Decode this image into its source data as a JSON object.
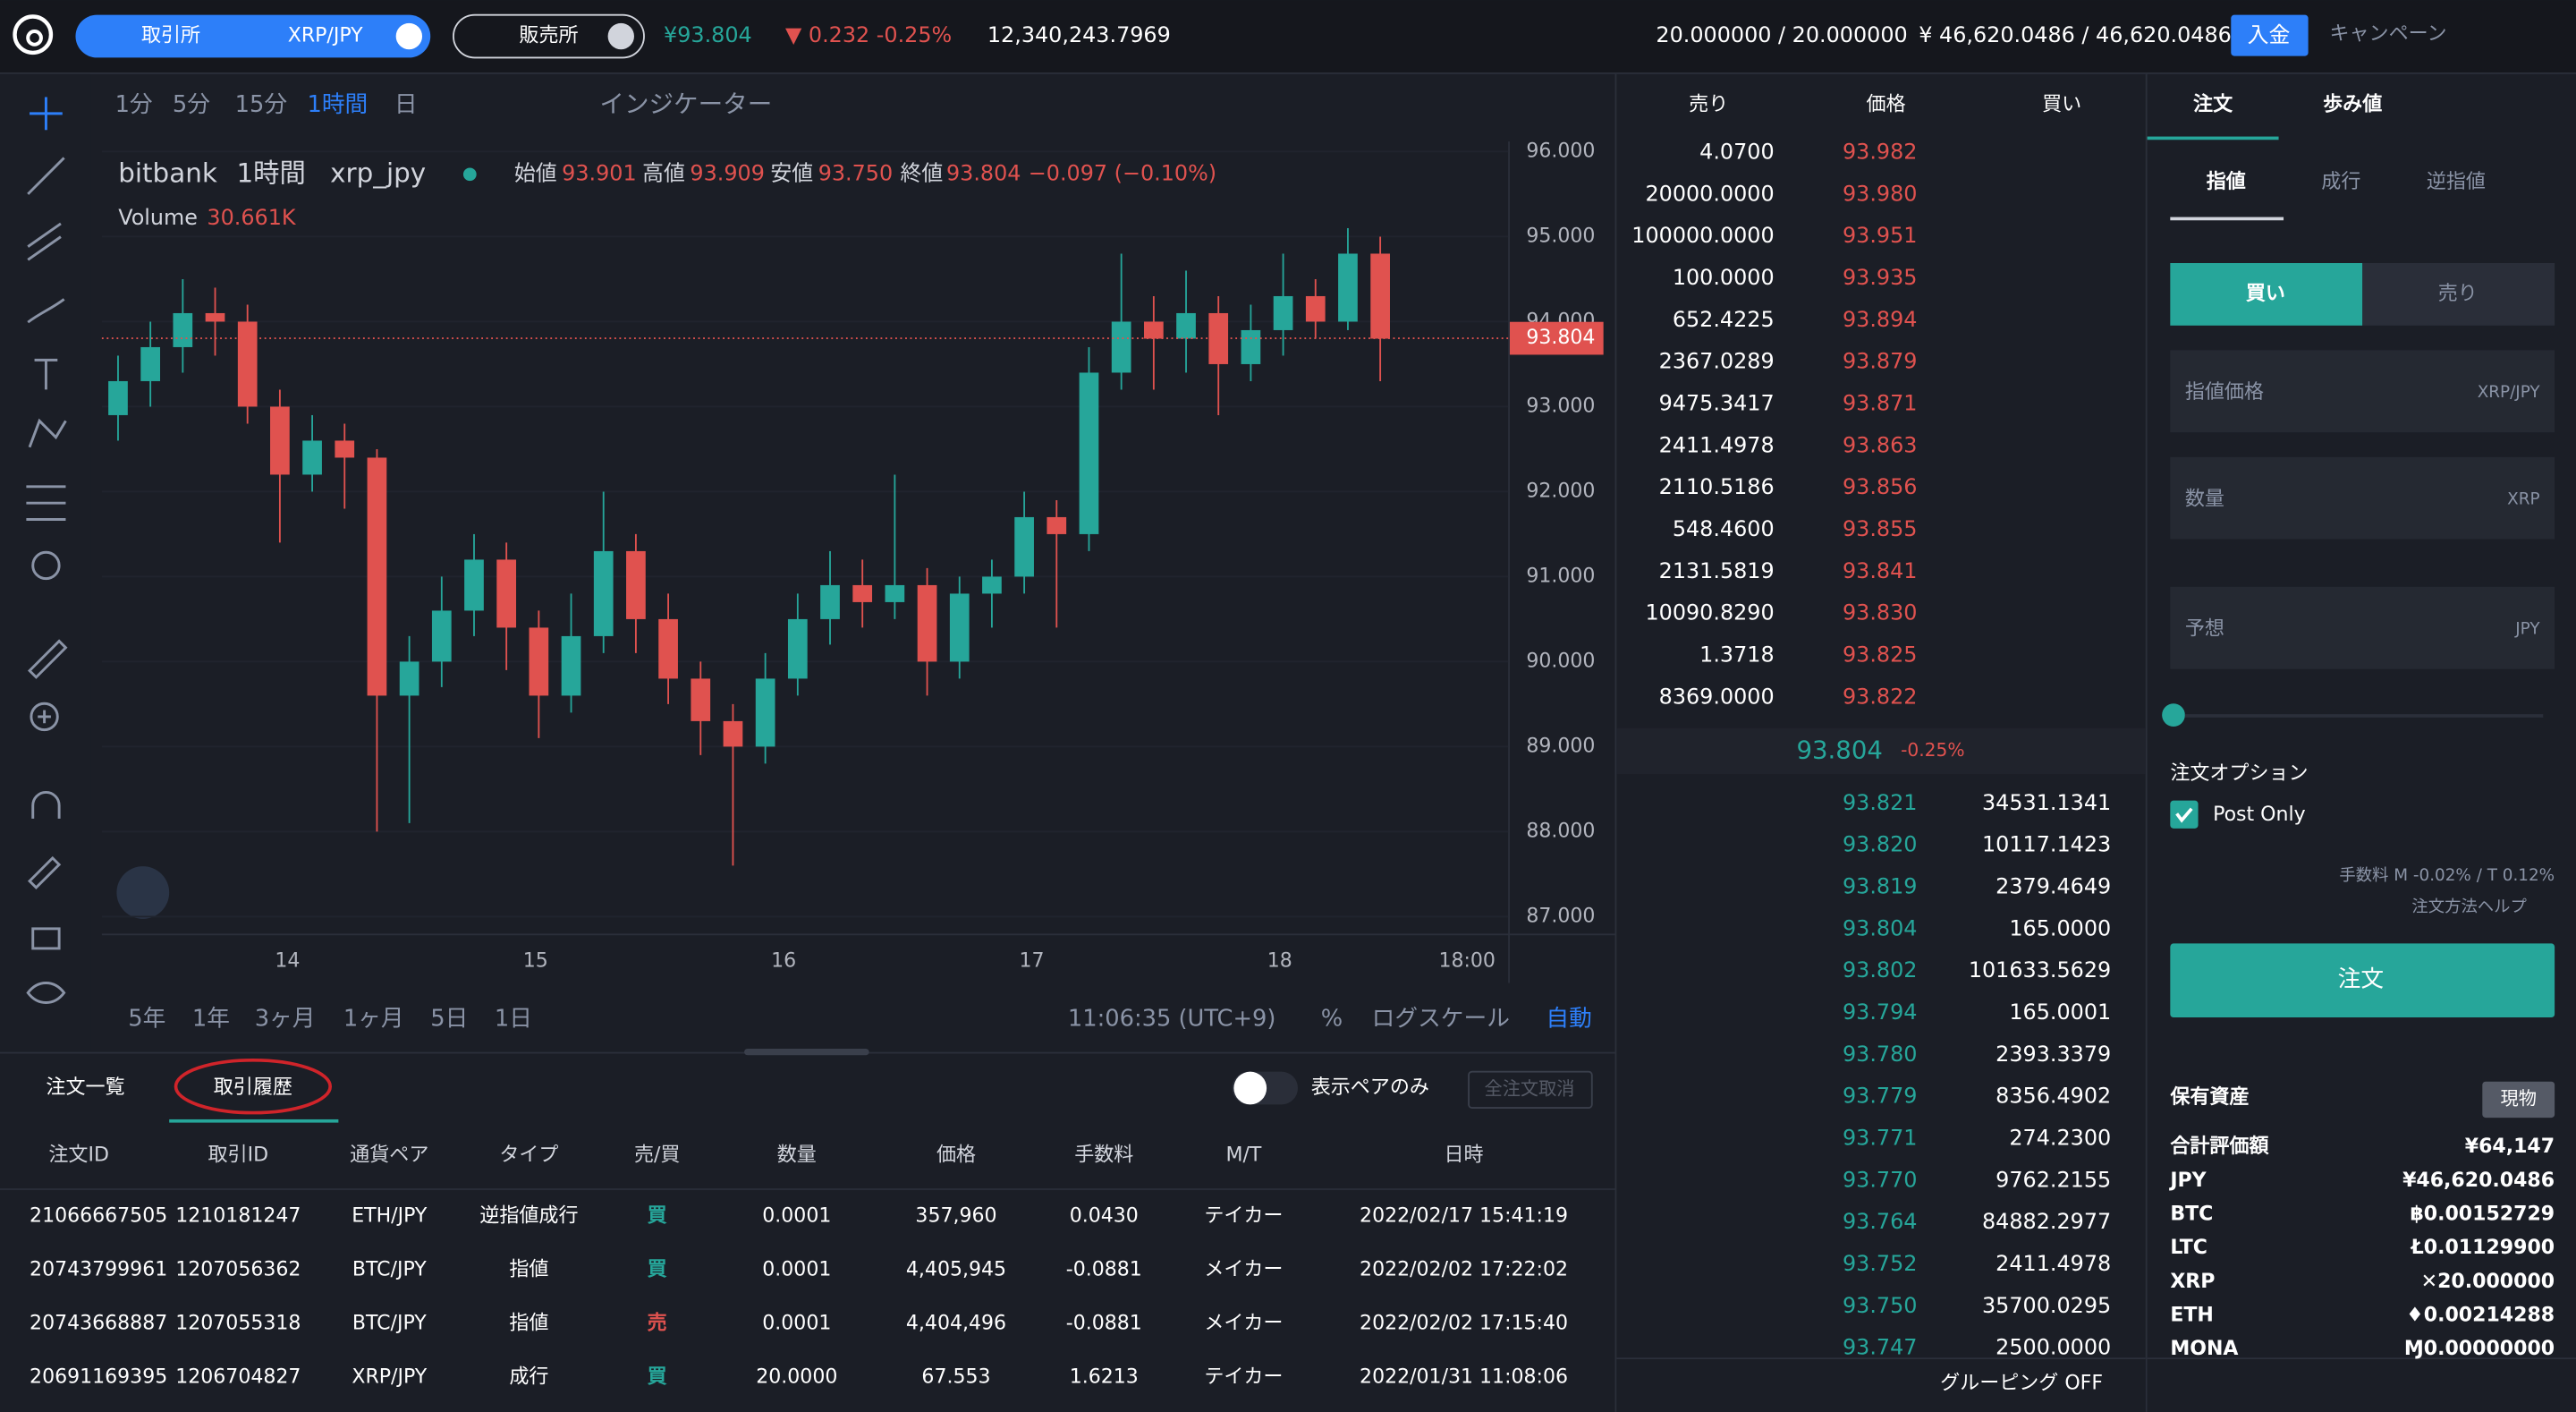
{
  "header": {
    "exchange_tab": "取引所",
    "pair": "XRP/JPY",
    "store_tab": "販売所",
    "price": "¥93.804",
    "change": "▼ 0.232 -0.25%",
    "volume": "12,340,243.7969",
    "xrp_balance": "20.000000 / 20.000000",
    "jpy_balance": "¥ 46,620.0486 / 46,620.0486",
    "deposit": "入金",
    "campaign": "キャンペーン"
  },
  "toolbar": {
    "intervals": [
      "1分",
      "5分",
      "15分",
      "1時間",
      "日"
    ],
    "indicator": "インジケーター"
  },
  "chart": {
    "type": "candlestick",
    "legend": {
      "exchange": "bitbank",
      "interval": "1時間",
      "symbol": "xrp_jpy",
      "open_label": "始値",
      "open": "93.901",
      "high_label": "高値",
      "high": "93.909",
      "low_label": "安値",
      "low": "93.750",
      "close_label": "終値",
      "close": "93.804",
      "change": "−0.097 (−0.10%)"
    },
    "volume_label": "Volume",
    "volume": "30.661K",
    "last_price": {
      "value": 93.804,
      "label": "93.804"
    },
    "ylim": [
      86.8,
      96.12
    ],
    "yticks": [
      {
        "value": 96,
        "label": "96.000"
      },
      {
        "value": 95,
        "label": "95.000"
      },
      {
        "value": 94,
        "label": "94.000"
      },
      {
        "value": 93,
        "label": "93.000"
      },
      {
        "value": 92,
        "label": "92.000"
      },
      {
        "value": 91,
        "label": "91.000"
      },
      {
        "value": 90,
        "label": "90.000"
      },
      {
        "value": 89,
        "label": "89.000"
      },
      {
        "value": 88,
        "label": "88.000"
      },
      {
        "value": 87,
        "label": "87.000"
      }
    ],
    "grid": true,
    "xlabels": [
      "14",
      "15",
      "16",
      "17",
      "18",
      "18:00"
    ],
    "up_color": "#26a69a",
    "down_color": "#e0524f",
    "candles": [
      [
        92.9,
        93.6,
        92.6,
        93.3
      ],
      [
        93.3,
        94.0,
        93.0,
        93.7
      ],
      [
        93.7,
        94.5,
        93.4,
        94.1
      ],
      [
        94.1,
        94.4,
        93.6,
        94.0
      ],
      [
        94.0,
        94.2,
        92.8,
        93.0
      ],
      [
        93.0,
        93.2,
        91.4,
        92.2
      ],
      [
        92.2,
        92.9,
        92.0,
        92.6
      ],
      [
        92.6,
        92.8,
        91.8,
        92.4
      ],
      [
        92.4,
        92.5,
        88.0,
        89.6
      ],
      [
        89.6,
        90.3,
        88.1,
        90.0
      ],
      [
        90.0,
        91.0,
        89.7,
        90.6
      ],
      [
        90.6,
        91.5,
        90.3,
        91.2
      ],
      [
        91.2,
        91.4,
        89.9,
        90.4
      ],
      [
        90.4,
        90.6,
        89.1,
        89.6
      ],
      [
        89.6,
        90.8,
        89.4,
        90.3
      ],
      [
        90.3,
        92.0,
        90.1,
        91.3
      ],
      [
        91.3,
        91.5,
        90.1,
        90.5
      ],
      [
        90.5,
        90.8,
        89.5,
        89.8
      ],
      [
        89.8,
        90.0,
        88.9,
        89.3
      ],
      [
        89.3,
        89.5,
        87.6,
        89.0
      ],
      [
        89.0,
        90.1,
        88.8,
        89.8
      ],
      [
        89.8,
        90.8,
        89.6,
        90.5
      ],
      [
        90.5,
        91.3,
        90.2,
        90.9
      ],
      [
        90.9,
        91.2,
        90.4,
        90.7
      ],
      [
        90.7,
        92.2,
        90.5,
        90.9
      ],
      [
        90.9,
        91.1,
        89.6,
        90.0
      ],
      [
        90.0,
        91.0,
        89.8,
        90.8
      ],
      [
        90.8,
        91.2,
        90.4,
        91.0
      ],
      [
        91.0,
        92.0,
        90.8,
        91.7
      ],
      [
        91.7,
        91.9,
        90.4,
        91.5
      ],
      [
        91.5,
        93.7,
        91.3,
        93.4
      ],
      [
        93.4,
        94.8,
        93.2,
        94.0
      ],
      [
        94.0,
        94.3,
        93.2,
        93.8
      ],
      [
        93.8,
        94.6,
        93.4,
        94.1
      ],
      [
        94.1,
        94.3,
        92.9,
        93.5
      ],
      [
        93.5,
        94.2,
        93.3,
        93.9
      ],
      [
        93.9,
        94.8,
        93.6,
        94.3
      ],
      [
        94.3,
        94.5,
        93.8,
        94.0
      ],
      [
        94.0,
        95.1,
        93.9,
        94.8
      ],
      [
        94.8,
        95.0,
        93.3,
        93.8
      ]
    ]
  },
  "range_bar": {
    "ranges": [
      "5年",
      "1年",
      "3ヶ月",
      "1ヶ月",
      "5日",
      "1日"
    ],
    "time": "11:06:35 (UTC+9)",
    "percent": "%",
    "log": "ログスケール",
    "auto": "自動"
  },
  "orders": {
    "tabs": [
      "注文一覧",
      "取引履歴"
    ],
    "pair_only": "表示ペアのみ",
    "cancel_all": "全注文取消",
    "columns": [
      "注文ID",
      "取引ID",
      "通貨ペア",
      "タイプ",
      "売/買",
      "数量",
      "価格",
      "手数料",
      "M/T",
      "日時"
    ],
    "rows": [
      [
        "21066667505",
        "1210181247",
        "ETH/JPY",
        "逆指値成行",
        "買",
        "0.0001",
        "357,960",
        "0.0430",
        "テイカー",
        "2022/02/17 15:41:19"
      ],
      [
        "20743799961",
        "1207056362",
        "BTC/JPY",
        "指値",
        "買",
        "0.0001",
        "4,405,945",
        "-0.0881",
        "メイカー",
        "2022/02/02 17:22:02"
      ],
      [
        "20743668887",
        "1207055318",
        "BTC/JPY",
        "指値",
        "売",
        "0.0001",
        "4,404,496",
        "-0.0881",
        "メイカー",
        "2022/02/02 17:15:40"
      ],
      [
        "20691169395",
        "1206704827",
        "XRP/JPY",
        "成行",
        "買",
        "20.0000",
        "67.553",
        "1.6213",
        "テイカー",
        "2022/01/31 11:08:06"
      ]
    ],
    "side_colors": [
      "#26a69a",
      "#26a69a",
      "#e0524f",
      "#26a69a"
    ]
  },
  "order_book": {
    "headers": [
      "売り",
      "価格",
      "買い"
    ],
    "asks": [
      [
        "4.0700",
        "93.982"
      ],
      [
        "20000.0000",
        "93.980"
      ],
      [
        "100000.0000",
        "93.951"
      ],
      [
        "100.0000",
        "93.935"
      ],
      [
        "652.4225",
        "93.894"
      ],
      [
        "2367.0289",
        "93.879"
      ],
      [
        "9475.3417",
        "93.871"
      ],
      [
        "2411.4978",
        "93.863"
      ],
      [
        "2110.5186",
        "93.856"
      ],
      [
        "548.4600",
        "93.855"
      ],
      [
        "2131.5819",
        "93.841"
      ],
      [
        "10090.8290",
        "93.830"
      ],
      [
        "1.3718",
        "93.825"
      ],
      [
        "8369.0000",
        "93.822"
      ]
    ],
    "mid": "93.804",
    "mid_change": "-0.25%",
    "bids": [
      [
        "93.821",
        "34531.1341"
      ],
      [
        "93.820",
        "10117.1423"
      ],
      [
        "93.819",
        "2379.4649"
      ],
      [
        "93.804",
        "165.0000"
      ],
      [
        "93.802",
        "101633.5629"
      ],
      [
        "93.794",
        "165.0001"
      ],
      [
        "93.780",
        "2393.3379"
      ],
      [
        "93.779",
        "8356.4902"
      ],
      [
        "93.771",
        "274.2300"
      ],
      [
        "93.770",
        "9762.2155"
      ],
      [
        "93.764",
        "84882.2977"
      ],
      [
        "93.752",
        "2411.4978"
      ],
      [
        "93.750",
        "35700.0295"
      ],
      [
        "93.747",
        "2500.0000"
      ]
    ],
    "grouping": "グルーピング OFF"
  },
  "order_panel": {
    "tabs": [
      "注文",
      "歩み値"
    ],
    "order_types": [
      "指値",
      "成行",
      "逆指値"
    ],
    "sides": [
      "買い",
      "売り"
    ],
    "price_label": "指値価格",
    "price_unit": "XRP/JPY",
    "amount_label": "数量",
    "amount_unit": "XRP",
    "estimate_label": "予想",
    "estimate_unit": "JPY",
    "options_label": "注文オプション",
    "post_only": "Post Only",
    "fee": "手数料 M -0.02% / T 0.12%",
    "help": "注文方法ヘルプ",
    "submit": "注文"
  },
  "assets": {
    "title": "保有資産",
    "badge": "現物",
    "rows": [
      [
        "合計評価額",
        "¥64,147"
      ],
      [
        "JPY",
        "¥46,620.0486"
      ],
      [
        "BTC",
        "฿0.00152729"
      ],
      [
        "LTC",
        "Ł0.01129900"
      ],
      [
        "XRP",
        "✕20.000000"
      ],
      [
        "ETH",
        "♦0.00214288"
      ],
      [
        "MONA",
        "Ɱ0.00000000"
      ]
    ]
  }
}
